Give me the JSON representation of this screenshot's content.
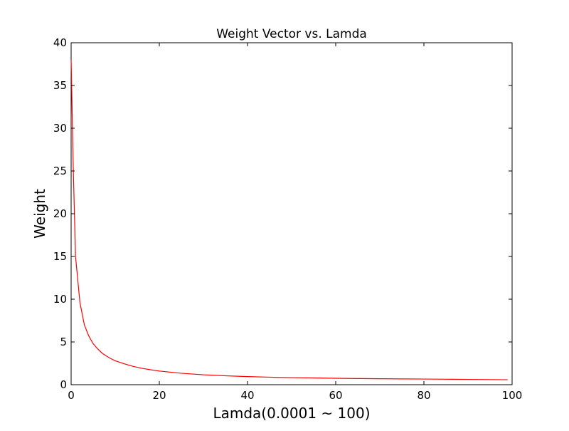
{
  "chart_data": {
    "type": "line",
    "title": "Weight Vector vs. Lamda",
    "xlabel": "Lamda(0.0001 ~ 100)",
    "ylabel": "Weight",
    "xlim": [
      0,
      100
    ],
    "ylim": [
      0,
      40
    ],
    "xticks": [
      "0",
      "20",
      "40",
      "60",
      "80",
      "100"
    ],
    "yticks": [
      "0",
      "5",
      "10",
      "15",
      "20",
      "25",
      "30",
      "35",
      "40"
    ],
    "grid": false,
    "legend": "none",
    "series": [
      {
        "color": "#ff0000",
        "x": [
          0,
          0.5,
          1,
          2,
          3,
          4,
          5,
          6,
          7,
          8,
          9,
          10,
          12,
          14,
          16,
          18,
          20,
          25,
          30,
          35,
          40,
          45,
          50,
          55,
          60,
          65,
          70,
          75,
          80,
          85,
          90,
          95,
          99
        ],
        "y": [
          38.0,
          25.0,
          15.0,
          9.6,
          7.0,
          5.7,
          4.8,
          4.2,
          3.7,
          3.35,
          3.05,
          2.8,
          2.45,
          2.15,
          1.92,
          1.75,
          1.6,
          1.34,
          1.16,
          1.04,
          0.95,
          0.88,
          0.83,
          0.79,
          0.75,
          0.72,
          0.7,
          0.68,
          0.66,
          0.64,
          0.62,
          0.6,
          0.58
        ]
      }
    ]
  }
}
